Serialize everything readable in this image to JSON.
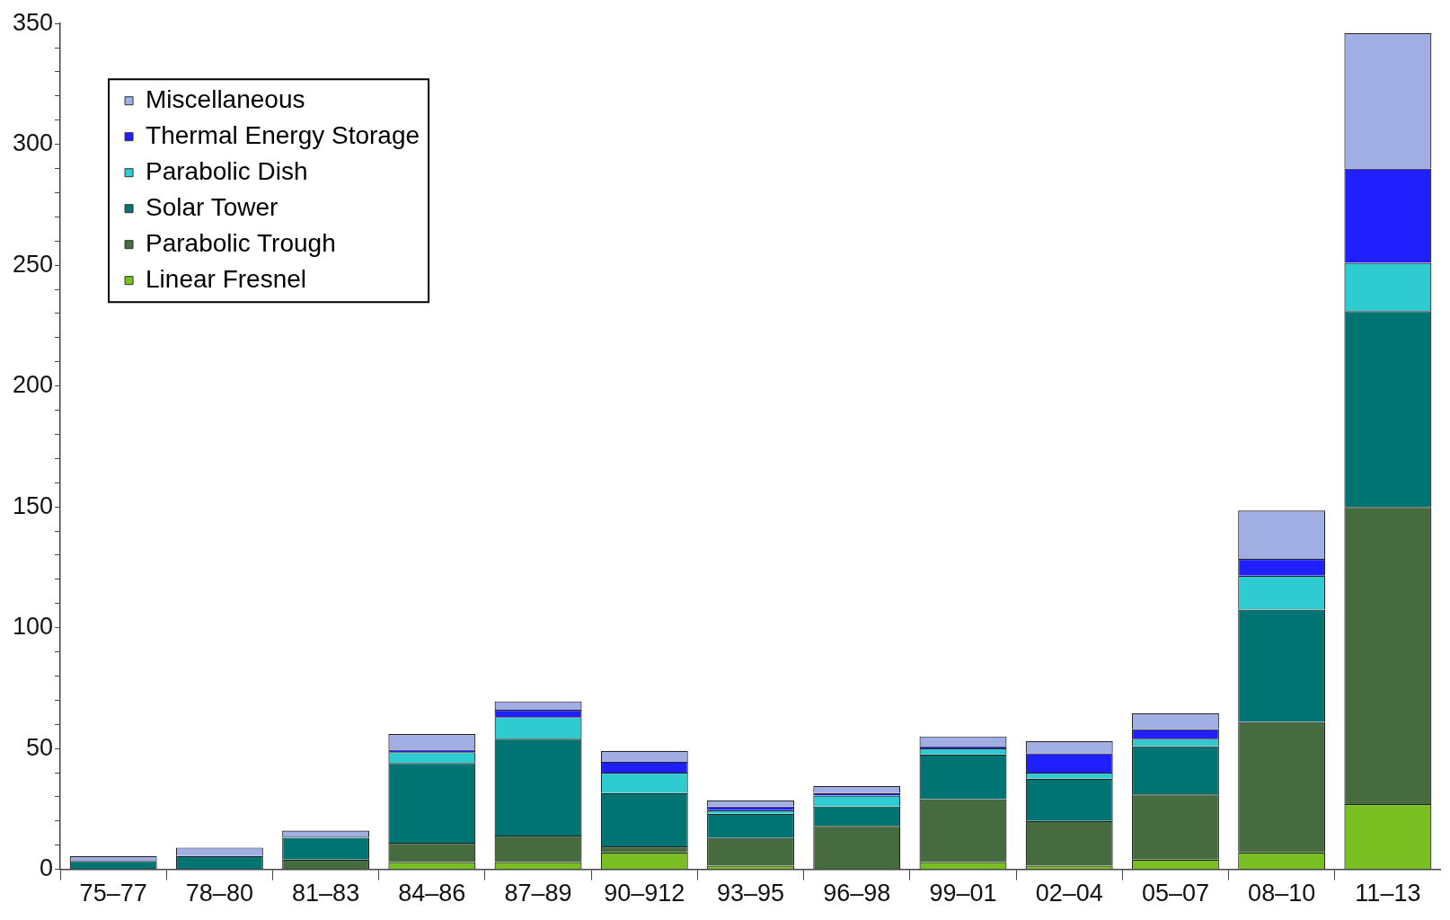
{
  "chart_data": {
    "type": "bar",
    "stacked": true,
    "categories": [
      "75–77",
      "78–80",
      "81–83",
      "84–86",
      "87–89",
      "90–912",
      "93–95",
      "96–98",
      "99–01",
      "02–04",
      "05–07",
      "08–10",
      "11–13"
    ],
    "series": [
      {
        "name": "Linear Fresnel",
        "color": "#7abf22",
        "values": [
          0,
          0,
          0,
          3,
          3,
          7,
          1.5,
          0,
          3,
          1.5,
          4,
          7,
          27
        ]
      },
      {
        "name": "Parabolic Trough",
        "color": "#466b3e",
        "values": [
          0,
          0,
          4,
          8,
          11,
          2.5,
          11.5,
          18,
          26,
          18.5,
          27,
          54,
          123
        ]
      },
      {
        "name": "Solar Tower",
        "color": "#007373",
        "values": [
          3.5,
          5.5,
          9,
          33,
          40,
          22,
          10,
          8,
          18.5,
          17.5,
          20,
          46.5,
          81
        ]
      },
      {
        "name": "Parabolic Dish",
        "color": "#2ecbd1",
        "values": [
          0,
          0,
          0.5,
          4.5,
          9,
          8.5,
          1.5,
          4.5,
          2.5,
          2.5,
          3,
          14,
          20
        ]
      },
      {
        "name": "Thermal Energy Storage",
        "color": "#2020ff",
        "values": [
          0,
          0,
          0,
          1,
          3,
          4.5,
          1.5,
          1,
          1,
          8,
          4,
          7,
          39
        ]
      },
      {
        "name": "Miscellaneous",
        "color": "#a0aee3",
        "values": [
          2,
          3.5,
          2.5,
          6.5,
          3.5,
          4.5,
          2.5,
          3,
          4,
          5,
          6.5,
          20,
          56
        ]
      }
    ],
    "ylim": [
      0,
      350
    ],
    "yticks": [
      0,
      {
        "value": 10,
        "label": null
      },
      {
        "value": 20,
        "label": null
      },
      {
        "value": 30,
        "label": null
      },
      {
        "value": 40,
        "label": null
      },
      50,
      {
        "value": 60,
        "label": null
      },
      {
        "value": 70,
        "label": null
      },
      {
        "value": 80,
        "label": null
      },
      {
        "value": 90,
        "label": null
      },
      100,
      {
        "value": 110,
        "label": null
      },
      {
        "value": 120,
        "label": null
      },
      {
        "value": 130,
        "label": null
      },
      {
        "value": 140,
        "label": null
      },
      150,
      {
        "value": 160,
        "label": null
      },
      {
        "value": 170,
        "label": null
      },
      {
        "value": 180,
        "label": null
      },
      {
        "value": 190,
        "label": null
      },
      200,
      {
        "value": 210,
        "label": null
      },
      {
        "value": 220,
        "label": null
      },
      {
        "value": 230,
        "label": null
      },
      {
        "value": 240,
        "label": null
      },
      250,
      {
        "value": 260,
        "label": null
      },
      {
        "value": 270,
        "label": null
      },
      {
        "value": 280,
        "label": null
      },
      {
        "value": 290,
        "label": null
      },
      300,
      {
        "value": 310,
        "label": null
      },
      {
        "value": 320,
        "label": null
      },
      {
        "value": 330,
        "label": null
      },
      {
        "value": 340,
        "label": null
      },
      350
    ],
    "grid": false,
    "legend": "top left"
  }
}
